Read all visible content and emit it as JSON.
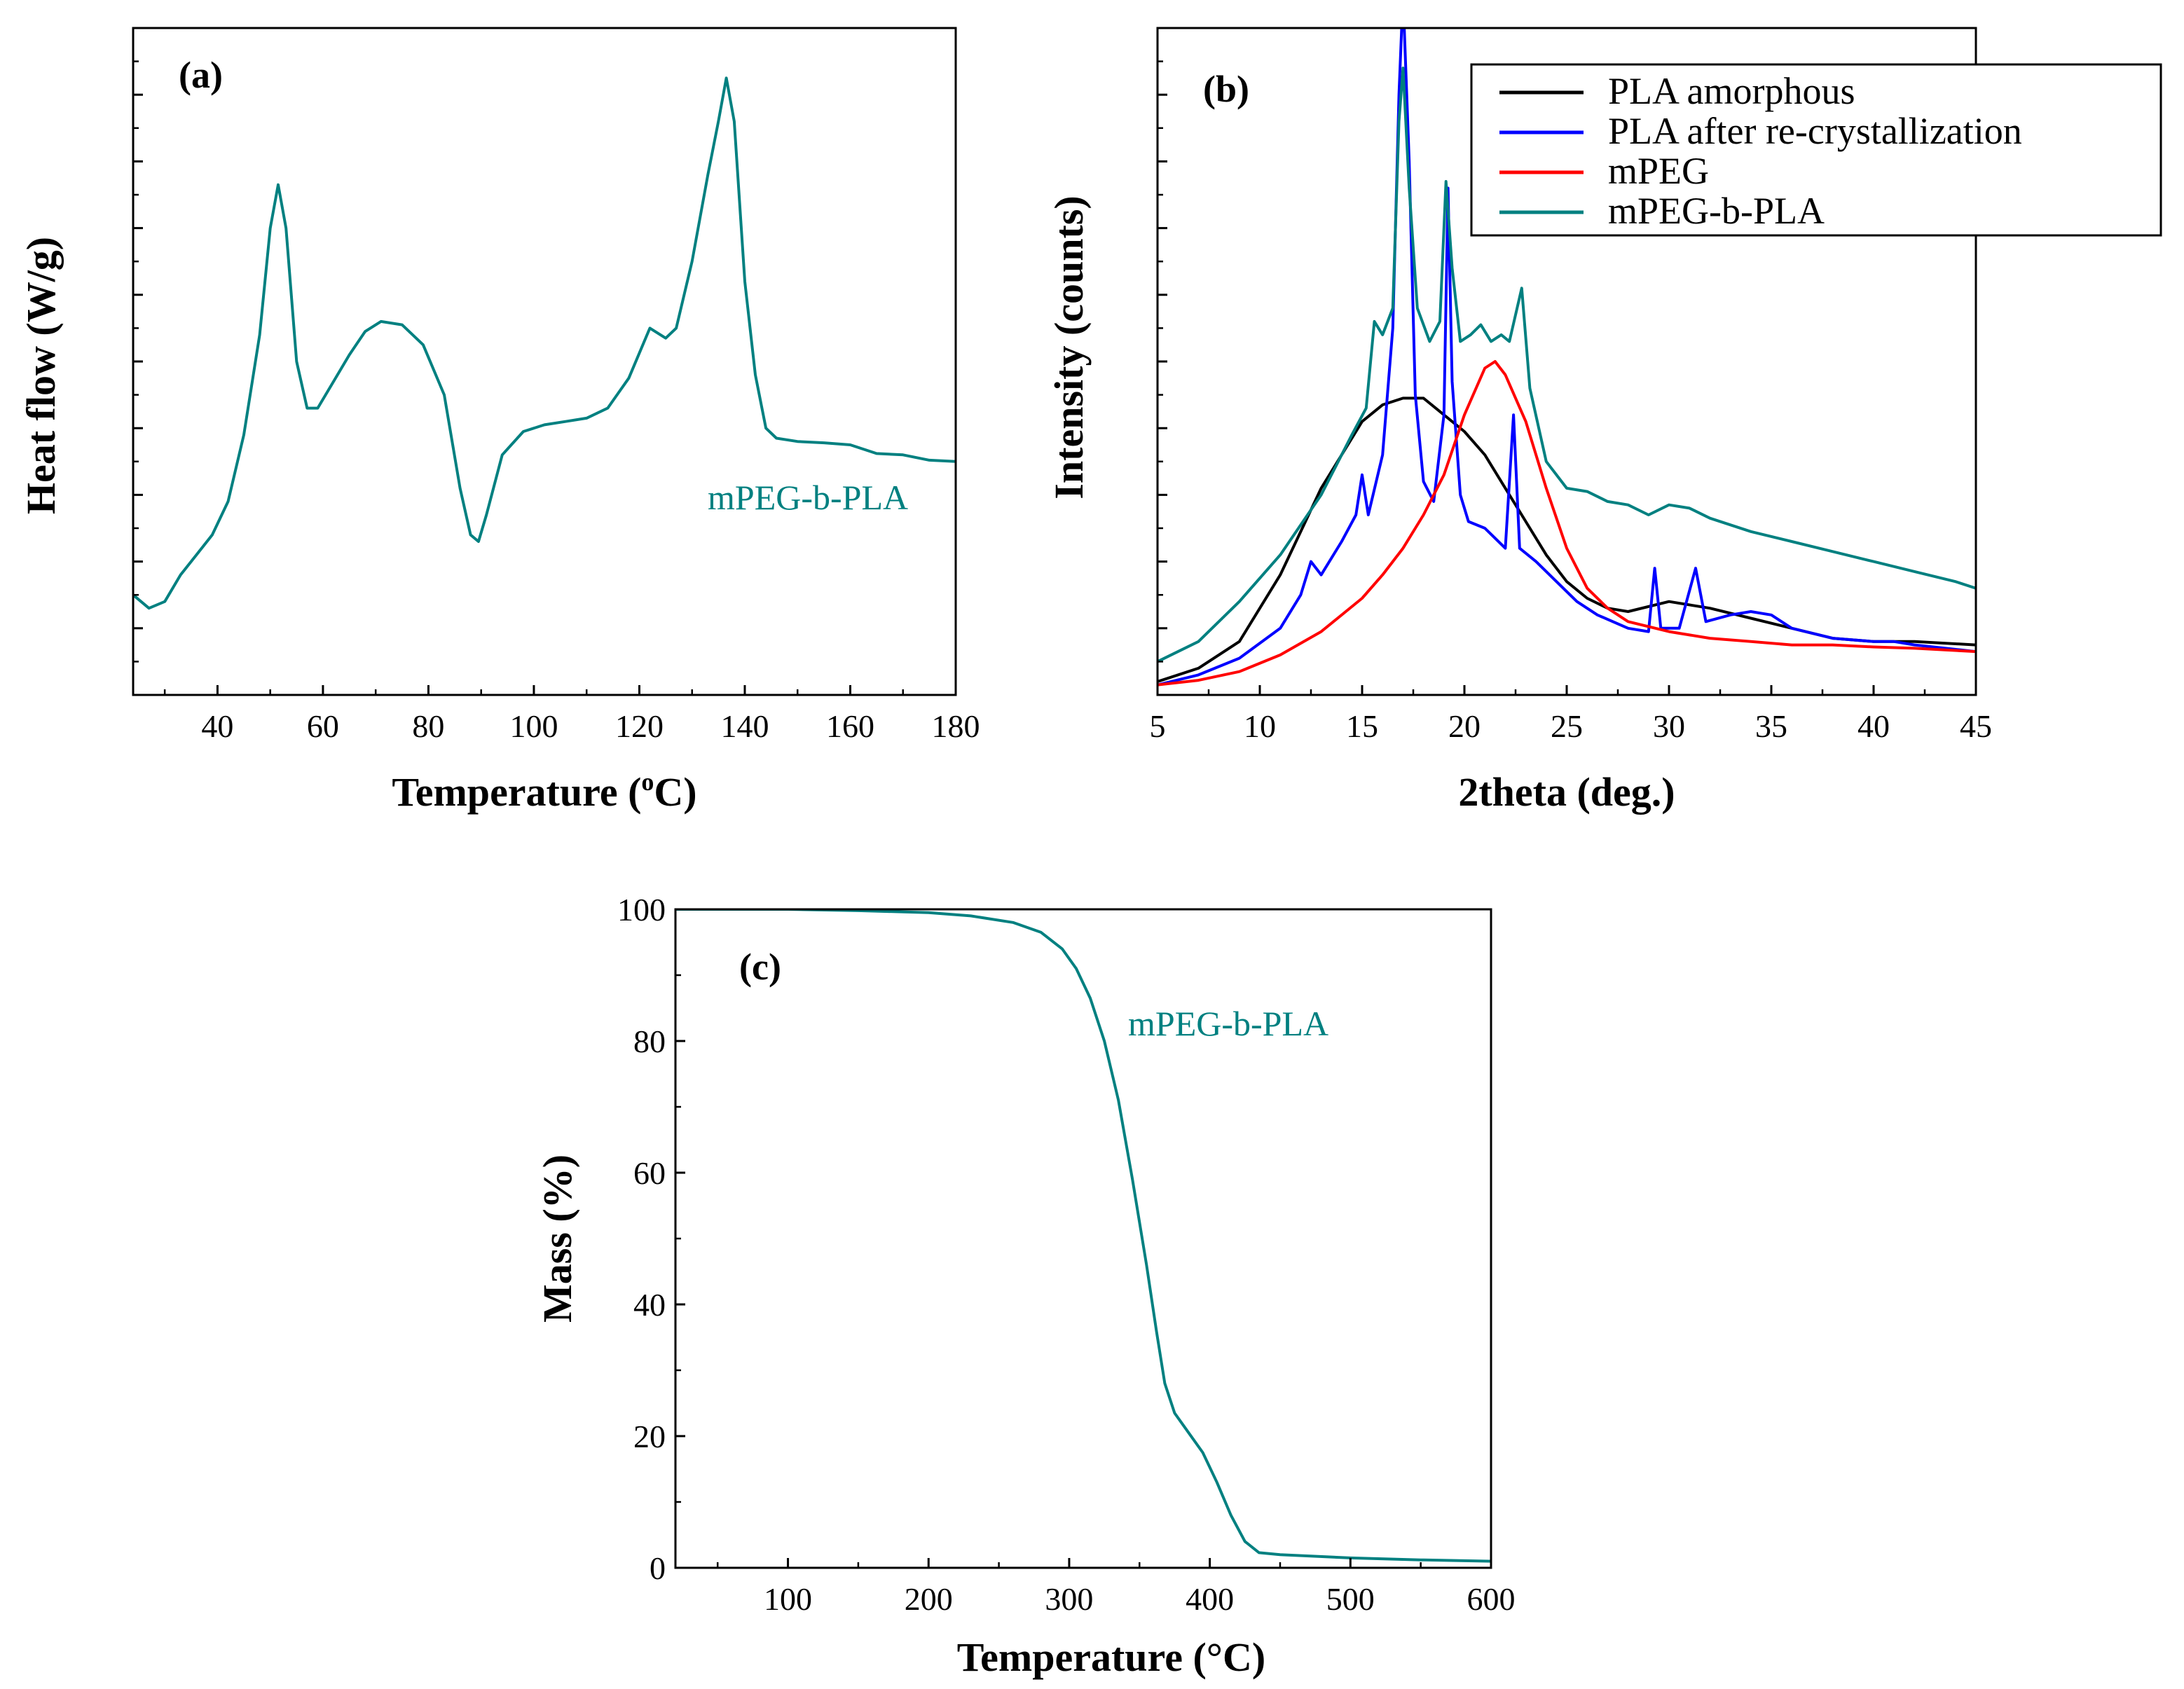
{
  "colors": {
    "teal": "#008080",
    "black": "#000000",
    "blue": "#0000ff",
    "red": "#ff0000"
  },
  "chart_data": [
    {
      "id": "a",
      "type": "line",
      "panel_label": "(a)",
      "xlabel": "Temperature (",
      "xlabel_sup": "o",
      "xlabel_end": "C)",
      "ylabel": "Heat flow (W/g)",
      "xlim": [
        24,
        180
      ],
      "ylim": [
        0,
        10
      ],
      "xticks": [
        40,
        60,
        80,
        100,
        120,
        140,
        160,
        180
      ],
      "xtick_labels": [
        "40",
        "60",
        "80",
        "100",
        "120",
        "140",
        "160",
        "180"
      ],
      "y_tick_labels_shown": false,
      "annotation": "mPEG-b-PLA",
      "series": [
        {
          "name": "mPEG-b-PLA",
          "color": "#008080",
          "points": [
            [
              24,
              1.5
            ],
            [
              27,
              1.3
            ],
            [
              30,
              1.4
            ],
            [
              33,
              1.8
            ],
            [
              36,
              2.1
            ],
            [
              39,
              2.4
            ],
            [
              42,
              2.9
            ],
            [
              45,
              3.9
            ],
            [
              48,
              5.4
            ],
            [
              50,
              7.0
            ],
            [
              51.5,
              7.65
            ],
            [
              53,
              7.0
            ],
            [
              55,
              5.0
            ],
            [
              57,
              4.3
            ],
            [
              59,
              4.3
            ],
            [
              62,
              4.7
            ],
            [
              65,
              5.1
            ],
            [
              68,
              5.45
            ],
            [
              71,
              5.6
            ],
            [
              75,
              5.55
            ],
            [
              79,
              5.25
            ],
            [
              83,
              4.5
            ],
            [
              86,
              3.1
            ],
            [
              88,
              2.4
            ],
            [
              89.5,
              2.3
            ],
            [
              91,
              2.7
            ],
            [
              94,
              3.6
            ],
            [
              98,
              3.95
            ],
            [
              102,
              4.05
            ],
            [
              106,
              4.1
            ],
            [
              110,
              4.15
            ],
            [
              114,
              4.3
            ],
            [
              118,
              4.75
            ],
            [
              122,
              5.5
            ],
            [
              125,
              5.35
            ],
            [
              127,
              5.5
            ],
            [
              130,
              6.5
            ],
            [
              133,
              7.8
            ],
            [
              135,
              8.6
            ],
            [
              136.5,
              9.25
            ],
            [
              138,
              8.6
            ],
            [
              140,
              6.2
            ],
            [
              142,
              4.8
            ],
            [
              144,
              4.0
            ],
            [
              146,
              3.85
            ],
            [
              150,
              3.8
            ],
            [
              155,
              3.78
            ],
            [
              160,
              3.75
            ],
            [
              165,
              3.62
            ],
            [
              170,
              3.6
            ],
            [
              175,
              3.52
            ],
            [
              180,
              3.5
            ]
          ]
        }
      ]
    },
    {
      "id": "b",
      "type": "line",
      "panel_label": "(b)",
      "xlabel": "2theta (deg.)",
      "ylabel": "Intensity (counts)",
      "xlim": [
        5,
        45
      ],
      "ylim": [
        0,
        10
      ],
      "xticks": [
        5,
        10,
        15,
        20,
        25,
        30,
        35,
        40,
        45
      ],
      "xtick_labels": [
        "5",
        "10",
        "15",
        "20",
        "25",
        "30",
        "35",
        "40",
        "45"
      ],
      "y_tick_labels_shown": false,
      "legend": [
        "PLA amorphous",
        "PLA after re-crystallization",
        "mPEG",
        "mPEG-b-PLA"
      ],
      "legend_position": "top-right",
      "series": [
        {
          "name": "PLA amorphous",
          "color": "#000000",
          "points": [
            [
              5,
              0.2
            ],
            [
              7,
              0.4
            ],
            [
              9,
              0.8
            ],
            [
              11,
              1.8
            ],
            [
              13,
              3.1
            ],
            [
              15,
              4.1
            ],
            [
              16,
              4.35
            ],
            [
              17,
              4.45
            ],
            [
              18,
              4.45
            ],
            [
              19,
              4.2
            ],
            [
              20,
              3.95
            ],
            [
              21,
              3.6
            ],
            [
              22,
              3.1
            ],
            [
              23,
              2.6
            ],
            [
              24,
              2.1
            ],
            [
              25,
              1.7
            ],
            [
              26,
              1.45
            ],
            [
              27,
              1.3
            ],
            [
              28,
              1.25
            ],
            [
              30,
              1.4
            ],
            [
              32,
              1.3
            ],
            [
              34,
              1.15
            ],
            [
              36,
              1.0
            ],
            [
              38,
              0.85
            ],
            [
              40,
              0.8
            ],
            [
              42,
              0.8
            ],
            [
              45,
              0.75
            ]
          ]
        },
        {
          "name": "PLA after re-crystallization",
          "color": "#0000ff",
          "points": [
            [
              5,
              0.15
            ],
            [
              7,
              0.3
            ],
            [
              9,
              0.55
            ],
            [
              11,
              1.0
            ],
            [
              12,
              1.5
            ],
            [
              12.5,
              2.0
            ],
            [
              13,
              1.8
            ],
            [
              14,
              2.3
            ],
            [
              14.7,
              2.7
            ],
            [
              15,
              3.3
            ],
            [
              15.3,
              2.7
            ],
            [
              16,
              3.6
            ],
            [
              16.5,
              5.5
            ],
            [
              16.8,
              9.0
            ],
            [
              17,
              10.5
            ],
            [
              17.3,
              8.0
            ],
            [
              17.6,
              4.5
            ],
            [
              18,
              3.2
            ],
            [
              18.5,
              2.9
            ],
            [
              19,
              4.2
            ],
            [
              19.2,
              7.6
            ],
            [
              19.4,
              4.7
            ],
            [
              19.8,
              3.0
            ],
            [
              20.2,
              2.6
            ],
            [
              21,
              2.5
            ],
            [
              22,
              2.2
            ],
            [
              22.4,
              4.2
            ],
            [
              22.7,
              2.2
            ],
            [
              23.5,
              2.0
            ],
            [
              24.5,
              1.7
            ],
            [
              25.5,
              1.4
            ],
            [
              26.5,
              1.2
            ],
            [
              28,
              1.0
            ],
            [
              29,
              0.95
            ],
            [
              29.3,
              1.9
            ],
            [
              29.6,
              1.0
            ],
            [
              30.5,
              1.0
            ],
            [
              31.3,
              1.9
            ],
            [
              31.8,
              1.1
            ],
            [
              33,
              1.2
            ],
            [
              34,
              1.25
            ],
            [
              35,
              1.2
            ],
            [
              36,
              1.0
            ],
            [
              38,
              0.85
            ],
            [
              40,
              0.8
            ],
            [
              41,
              0.8
            ],
            [
              42,
              0.75
            ],
            [
              45,
              0.65
            ]
          ]
        },
        {
          "name": "mPEG",
          "color": "#ff0000",
          "points": [
            [
              5,
              0.15
            ],
            [
              7,
              0.22
            ],
            [
              9,
              0.35
            ],
            [
              11,
              0.6
            ],
            [
              13,
              0.95
            ],
            [
              15,
              1.45
            ],
            [
              16,
              1.8
            ],
            [
              17,
              2.2
            ],
            [
              18,
              2.7
            ],
            [
              19,
              3.3
            ],
            [
              20,
              4.2
            ],
            [
              21,
              4.9
            ],
            [
              21.5,
              5.0
            ],
            [
              22,
              4.8
            ],
            [
              23,
              4.1
            ],
            [
              24,
              3.1
            ],
            [
              25,
              2.2
            ],
            [
              26,
              1.6
            ],
            [
              27,
              1.3
            ],
            [
              28,
              1.1
            ],
            [
              30,
              0.95
            ],
            [
              32,
              0.85
            ],
            [
              34,
              0.8
            ],
            [
              36,
              0.75
            ],
            [
              38,
              0.75
            ],
            [
              40,
              0.72
            ],
            [
              42,
              0.7
            ],
            [
              45,
              0.65
            ]
          ]
        },
        {
          "name": "mPEG-b-PLA",
          "color": "#008080",
          "points": [
            [
              5,
              0.5
            ],
            [
              7,
              0.8
            ],
            [
              9,
              1.4
            ],
            [
              11,
              2.1
            ],
            [
              13,
              3.0
            ],
            [
              14.5,
              3.9
            ],
            [
              15.2,
              4.3
            ],
            [
              15.6,
              5.6
            ],
            [
              16,
              5.4
            ],
            [
              16.5,
              5.8
            ],
            [
              16.8,
              8.6
            ],
            [
              17,
              9.4
            ],
            [
              17.3,
              7.6
            ],
            [
              17.7,
              5.8
            ],
            [
              18.3,
              5.3
            ],
            [
              18.8,
              5.6
            ],
            [
              19.1,
              7.7
            ],
            [
              19.4,
              6.4
            ],
            [
              19.8,
              5.3
            ],
            [
              20.3,
              5.4
            ],
            [
              20.8,
              5.55
            ],
            [
              21.3,
              5.3
            ],
            [
              21.8,
              5.4
            ],
            [
              22.2,
              5.3
            ],
            [
              22.8,
              6.1
            ],
            [
              23.2,
              4.6
            ],
            [
              24,
              3.5
            ],
            [
              25,
              3.1
            ],
            [
              26,
              3.05
            ],
            [
              27,
              2.9
            ],
            [
              28,
              2.85
            ],
            [
              29,
              2.7
            ],
            [
              30,
              2.85
            ],
            [
              31,
              2.8
            ],
            [
              32,
              2.65
            ],
            [
              34,
              2.45
            ],
            [
              36,
              2.3
            ],
            [
              38,
              2.15
            ],
            [
              40,
              2.0
            ],
            [
              42,
              1.85
            ],
            [
              44,
              1.7
            ],
            [
              45,
              1.6
            ]
          ]
        }
      ]
    },
    {
      "id": "c",
      "type": "line",
      "panel_label": "(c)",
      "xlabel": "Temperature (°C)",
      "ylabel": "Mass (%)",
      "xlim": [
        20,
        600
      ],
      "ylim": [
        0,
        100
      ],
      "xticks": [
        100,
        200,
        300,
        400,
        500,
        600
      ],
      "xtick_labels": [
        "100",
        "200",
        "300",
        "400",
        "500",
        "600"
      ],
      "yticks": [
        0,
        20,
        40,
        60,
        80,
        100
      ],
      "ytick_labels": [
        "0",
        "20",
        "40",
        "60",
        "80",
        "100"
      ],
      "annotation": "mPEG-b-PLA",
      "series": [
        {
          "name": "mPEG-b-PLA",
          "color": "#008080",
          "points": [
            [
              20,
              100
            ],
            [
              100,
              100
            ],
            [
              150,
              99.8
            ],
            [
              200,
              99.5
            ],
            [
              230,
              99.0
            ],
            [
              260,
              98.0
            ],
            [
              280,
              96.5
            ],
            [
              295,
              94.0
            ],
            [
              305,
              91.0
            ],
            [
              315,
              86.5
            ],
            [
              325,
              80.0
            ],
            [
              335,
              71.0
            ],
            [
              345,
              59.0
            ],
            [
              355,
              46.0
            ],
            [
              362,
              36.0
            ],
            [
              368,
              28.0
            ],
            [
              375,
              23.5
            ],
            [
              385,
              20.5
            ],
            [
              395,
              17.5
            ],
            [
              405,
              13.0
            ],
            [
              415,
              8.0
            ],
            [
              425,
              4.0
            ],
            [
              435,
              2.3
            ],
            [
              450,
              2.0
            ],
            [
              500,
              1.5
            ],
            [
              550,
              1.2
            ],
            [
              600,
              1.0
            ]
          ]
        }
      ]
    }
  ]
}
